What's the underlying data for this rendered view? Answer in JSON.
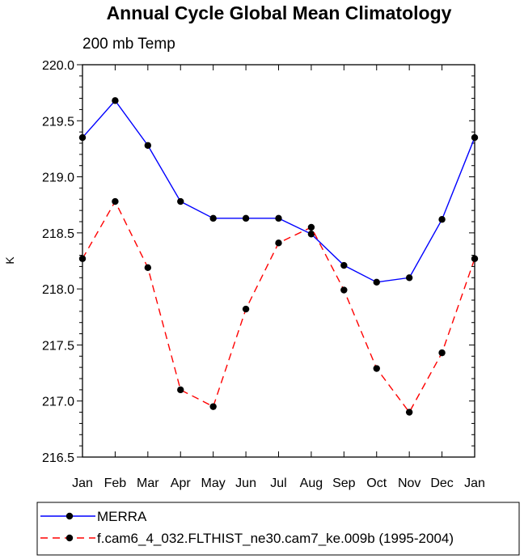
{
  "chart_data": {
    "type": "line",
    "title": "Annual Cycle Global Mean Climatology",
    "subtitle": "200 mb Temp",
    "xlabel": "",
    "ylabel": "K",
    "categories": [
      "Jan",
      "Feb",
      "Mar",
      "Apr",
      "May",
      "Jun",
      "Jul",
      "Aug",
      "Sep",
      "Oct",
      "Nov",
      "Dec",
      "Jan"
    ],
    "ylim": [
      216.5,
      220.0
    ],
    "yticks": [
      "216.5",
      "217.0",
      "217.5",
      "218.0",
      "218.5",
      "219.0",
      "219.5",
      "220.0"
    ],
    "grid": false,
    "legend_position": "bottom",
    "series": [
      {
        "name": "MERRA",
        "color": "#0000ff",
        "line_style": "solid",
        "marker": "filled-circle",
        "values": [
          219.35,
          219.68,
          219.28,
          218.78,
          218.63,
          218.63,
          218.63,
          218.49,
          218.21,
          218.06,
          218.1,
          218.62,
          219.35
        ]
      },
      {
        "name": "f.cam6_4_032.FLTHIST_ne30.cam7_ke.009b (1995-2004)",
        "color": "#ff0000",
        "line_style": "dashed",
        "marker": "filled-circle",
        "values": [
          218.27,
          218.78,
          218.19,
          217.1,
          216.95,
          217.82,
          218.41,
          218.55,
          217.99,
          217.29,
          216.9,
          217.43,
          218.27
        ]
      }
    ]
  }
}
